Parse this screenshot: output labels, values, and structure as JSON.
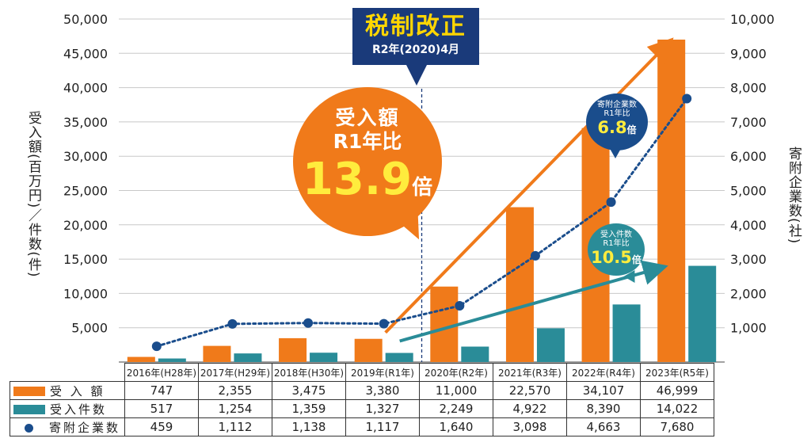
{
  "chart_data": {
    "type": "bar",
    "categories": [
      "2016年(H28年)",
      "2017年(H29年)",
      "2018年(H30年)",
      "2019年(R1年)",
      "2020年(R2年)",
      "2021年(R3年)",
      "2022年(R4年)",
      "2023年(R5年)"
    ],
    "series": [
      {
        "name": "受 入 額",
        "type": "bar",
        "axis": "left",
        "color": "#f07a1a",
        "values": [
          747,
          2355,
          3475,
          3380,
          11000,
          22570,
          34107,
          46999
        ],
        "labels": [
          "747",
          "2,355",
          "3,475",
          "3,380",
          "11,000",
          "22,570",
          "34,107",
          "46,999"
        ]
      },
      {
        "name": "受入件数",
        "type": "bar",
        "axis": "left",
        "color": "#2a8c98",
        "values": [
          517,
          1254,
          1359,
          1327,
          2249,
          4922,
          8390,
          14022
        ],
        "labels": [
          "517",
          "1,254",
          "1,359",
          "1,327",
          "2,249",
          "4,922",
          "8,390",
          "14,022"
        ]
      },
      {
        "name": "寄附企業数",
        "type": "line",
        "axis": "right",
        "color": "#1a4d8c",
        "style": "dotted",
        "values": [
          459,
          1112,
          1138,
          1117,
          1640,
          3098,
          4663,
          7680
        ],
        "labels": [
          "459",
          "1,112",
          "1,138",
          "1,117",
          "1,640",
          "3,098",
          "4,663",
          "7,680"
        ]
      }
    ],
    "ylabel": "受入額(百万円)／件数(件)",
    "y2label": "寄附企業数(社)",
    "ylim": [
      0,
      50000
    ],
    "y2lim": [
      0,
      10000
    ],
    "yticks": [
      "5,000",
      "10,000",
      "15,000",
      "20,000",
      "25,000",
      "30,000",
      "35,000",
      "40,000",
      "45,000",
      "50,000"
    ],
    "y2ticks": [
      "1,000",
      "2,000",
      "3,000",
      "4,000",
      "5,000",
      "6,000",
      "7,000",
      "8,000",
      "9,000",
      "10,000"
    ],
    "grid": true,
    "annotations": {
      "tax_reform": {
        "title": "税制改正",
        "date": "R2年(2020)4月"
      },
      "amount": {
        "line1": "受入額",
        "line2": "R1年比",
        "value": "13.9",
        "unit": "倍"
      },
      "companies": {
        "line1": "寄附企業数",
        "line2": "R1年比",
        "value": "6.8",
        "unit": "倍"
      },
      "count": {
        "line1": "受入件数",
        "line2": "R1年比",
        "value": "10.5",
        "unit": "倍"
      }
    }
  },
  "table": {
    "row_labels": [
      "受 入 額",
      "受入件数",
      "寄附企業数"
    ]
  }
}
